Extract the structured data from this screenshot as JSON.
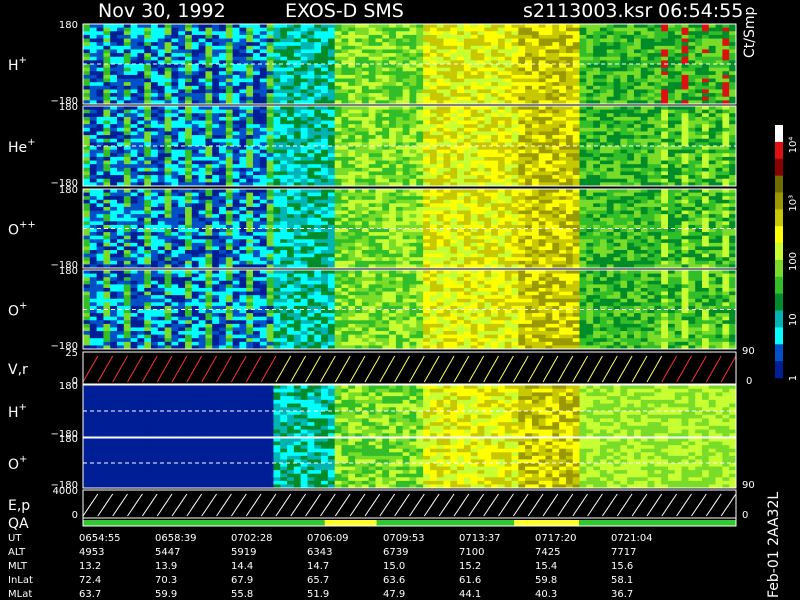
{
  "header": {
    "date": "Nov 30, 1992",
    "instrument": "EXOS-D SMS",
    "file": "s2113003.ksr",
    "time": "06:54:55"
  },
  "side_label": "Feb-01 2AA32L",
  "colorbar": {
    "unit": "Ct/Smp",
    "ticks": [
      "10⁴",
      "10³",
      "100",
      "10",
      "1"
    ],
    "colors": [
      "#ffffff",
      "#dd1111",
      "#880000",
      "#6e6e00",
      "#9a9a00",
      "#c8c800",
      "#ffff00",
      "#c8ff32",
      "#78dc28",
      "#32be28",
      "#008c28",
      "#00b4b4",
      "#00ffff",
      "#0050c8",
      "#001e96"
    ]
  },
  "panels": [
    {
      "label": "H",
      "charge": "+",
      "ymax": "180",
      "ymin": "−180"
    },
    {
      "label": "He",
      "charge": "+",
      "ymax": "180",
      "ymin": "−180"
    },
    {
      "label": "O",
      "charge": "++",
      "ymax": "180",
      "ymin": "−180"
    },
    {
      "label": "O",
      "charge": "+",
      "ymax": "180",
      "ymin": "−180"
    },
    {
      "label": "V,r",
      "charge": "",
      "ymax": "25",
      "ymin": "0",
      "right": "90",
      "right2": "0"
    },
    {
      "label": "H",
      "charge": "+",
      "ymax": "180",
      "ymin": "−180"
    },
    {
      "label": "O",
      "charge": "+",
      "ymax": "180",
      "ymin": "−180",
      "right": "90"
    },
    {
      "label": "E,p",
      "charge": "",
      "ymax": "4000",
      "ymin": "0",
      "right": "0"
    },
    {
      "label": "QA",
      "charge": ""
    }
  ],
  "chart_data": {
    "type": "heatmap",
    "x_times": [
      "0654:55",
      "0658:39",
      "0702:28",
      "0706:09",
      "0709:53",
      "0713:37",
      "0717:20",
      "0721:04"
    ],
    "y_range": [
      -180,
      180
    ],
    "ephemeris": [
      {
        "name": "UT",
        "values": [
          "0654:55",
          "0658:39",
          "0702:28",
          "0706:09",
          "0709:53",
          "0713:37",
          "0717:20",
          "0721:04"
        ]
      },
      {
        "name": "ALT",
        "values": [
          "4953",
          "5447",
          "5919",
          "6343",
          "6739",
          "7100",
          "7425",
          "7717"
        ]
      },
      {
        "name": "MLT",
        "values": [
          "13.2",
          "13.9",
          "14.4",
          "14.7",
          "15.0",
          "15.2",
          "15.4",
          "15.6"
        ]
      },
      {
        "name": "InLat",
        "values": [
          "72.4",
          "70.3",
          "67.9",
          "65.7",
          "63.6",
          "61.6",
          "59.8",
          "58.1"
        ]
      },
      {
        "name": "MLat",
        "values": [
          "63.7",
          "59.9",
          "55.8",
          "51.9",
          "47.9",
          "44.1",
          "40.3",
          "36.7"
        ]
      }
    ]
  }
}
